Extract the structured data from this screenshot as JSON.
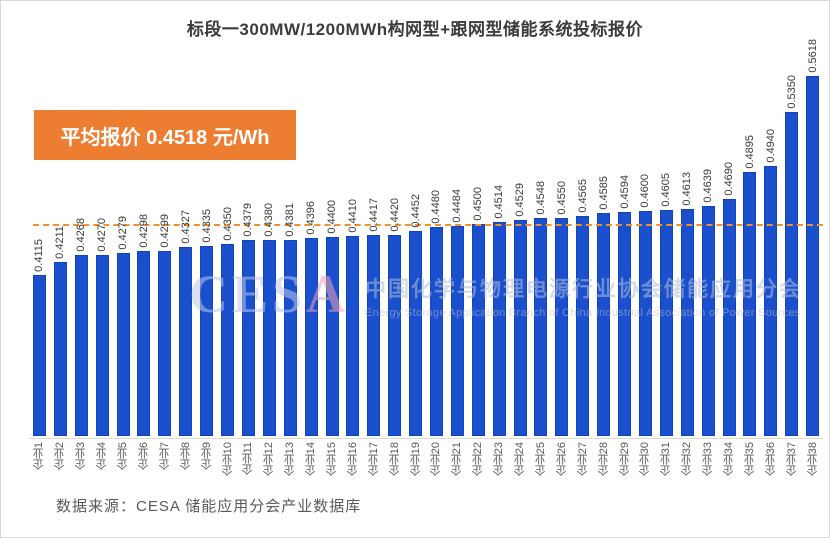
{
  "title": "标段一300MW/1200MWh构网型+跟网型储能系统投标报价",
  "annotation": {
    "label": "平均报价 0.4518 元/Wh"
  },
  "watermark": {
    "logo_prefix": "CES",
    "logo_accent": "A",
    "cn": "中国化学与物理电源行业协会储能应用分会",
    "en": "Energy Storage Application Branch of China Industrial Association of Power Sources"
  },
  "source": "数据来源：CESA 储能应用分会产业数据库",
  "chart_data": {
    "type": "bar",
    "title": "标段一300MW/1200MWh构网型+跟网型储能系统投标报价",
    "categories": [
      "企业1",
      "企业2",
      "企业3",
      "企业4",
      "企业5",
      "企业6",
      "企业7",
      "企业8",
      "企业9",
      "企业10",
      "企业11",
      "企业12",
      "企业13",
      "企业14",
      "企业15",
      "企业16",
      "企业17",
      "企业18",
      "企业19",
      "企业20",
      "企业21",
      "企业22",
      "企业23",
      "企业24",
      "企业25",
      "企业26",
      "企业27",
      "企业28",
      "企业29",
      "企业30",
      "企业31",
      "企业32",
      "企业33",
      "企业34",
      "企业35",
      "企业36",
      "企业37",
      "企业38"
    ],
    "values": [
      0.4115,
      0.4211,
      0.4268,
      0.427,
      0.4279,
      0.4298,
      0.4299,
      0.4327,
      0.4335,
      0.435,
      0.4379,
      0.438,
      0.4381,
      0.4396,
      0.44,
      0.441,
      0.4417,
      0.442,
      0.4452,
      0.448,
      0.4484,
      0.45,
      0.4514,
      0.4529,
      0.4548,
      0.455,
      0.4565,
      0.4585,
      0.4594,
      0.46,
      0.4605,
      0.4613,
      0.4639,
      0.469,
      0.4895,
      0.494,
      0.535,
      0.5618
    ],
    "unit": "元/Wh",
    "average": 0.4518,
    "average_line": true,
    "data_labels": true,
    "label_rotation": 90,
    "ylim": [
      0.29,
      0.58
    ],
    "grid": false,
    "legend": false,
    "bar_color": "#1A50CE",
    "average_line_color": "#F0912E",
    "annotation_box_color": "#ED7D31"
  }
}
